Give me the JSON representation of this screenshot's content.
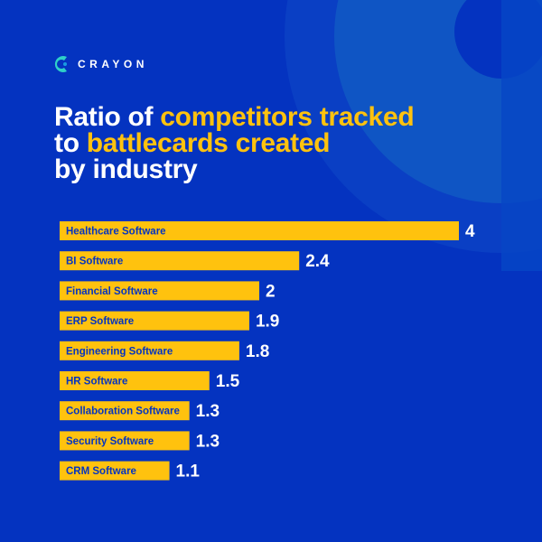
{
  "brand": {
    "name": "CRAYON",
    "logo_colors": [
      "#2fd0c8",
      "#1a9be0"
    ]
  },
  "title": {
    "line1_plain": "Ratio of ",
    "line1_highlight": "competitors tracked",
    "line2_plain": "to ",
    "line2_highlight": "battlecards created",
    "line3_plain": "by industry"
  },
  "colors": {
    "background": "#0433c0",
    "bar": "#ffc20e",
    "highlight": "#ffc20e",
    "text": "#ffffff",
    "bar_label": "#0433c0"
  },
  "chart_data": {
    "type": "bar",
    "orientation": "horizontal",
    "categories": [
      "Healthcare Software",
      "BI Software",
      "Financial Software",
      "ERP Software",
      "Engineering Software",
      "HR Software",
      "Collaboration Software",
      "Security Software",
      "CRM Software"
    ],
    "values": [
      4,
      2.4,
      2,
      1.9,
      1.8,
      1.5,
      1.3,
      1.3,
      1.1
    ],
    "value_labels": [
      "4",
      "2.4",
      "2",
      "1.9",
      "1.8",
      "1.5",
      "1.3",
      "1.3",
      "1.1"
    ],
    "xlim": [
      0,
      4
    ],
    "grid": false,
    "legend": "none"
  }
}
